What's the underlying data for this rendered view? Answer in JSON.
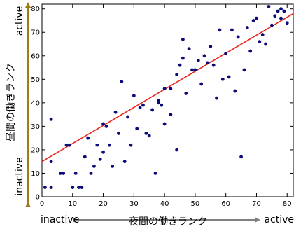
{
  "chart_data": {
    "type": "scatter",
    "title": "",
    "xlabel": "夜間の働きランク",
    "ylabel": "昼間の働きランク",
    "x_low_label": "inactive",
    "x_high_label": "active",
    "y_low_label": "inactive",
    "y_high_label": "active",
    "xlim": [
      0,
      82
    ],
    "ylim": [
      0,
      82
    ],
    "xticks": [
      0,
      10,
      20,
      30,
      40,
      50,
      60,
      70,
      80
    ],
    "yticks": [
      0,
      10,
      20,
      30,
      40,
      50,
      60,
      70,
      80
    ],
    "grid": false,
    "colors": {
      "points": "#0a0a7a",
      "fit_line": "#e8251c",
      "x_arrow": "#808080",
      "y_arrow": "#a07c18"
    },
    "points": [
      [
        1,
        4
      ],
      [
        3,
        4
      ],
      [
        3,
        15
      ],
      [
        3,
        33
      ],
      [
        6,
        10
      ],
      [
        7,
        10
      ],
      [
        8,
        22
      ],
      [
        9,
        22
      ],
      [
        10,
        4
      ],
      [
        11,
        10
      ],
      [
        12,
        4
      ],
      [
        13,
        4
      ],
      [
        14,
        17
      ],
      [
        15,
        25
      ],
      [
        16,
        10
      ],
      [
        17,
        13
      ],
      [
        18,
        22
      ],
      [
        19,
        16
      ],
      [
        20,
        31
      ],
      [
        20,
        19
      ],
      [
        21,
        30
      ],
      [
        22,
        22
      ],
      [
        23,
        13
      ],
      [
        24,
        36
      ],
      [
        25,
        27
      ],
      [
        26,
        49
      ],
      [
        27,
        15
      ],
      [
        28,
        34
      ],
      [
        29,
        22
      ],
      [
        30,
        43
      ],
      [
        31,
        29
      ],
      [
        32,
        38
      ],
      [
        33,
        39
      ],
      [
        34,
        27
      ],
      [
        35,
        26
      ],
      [
        36,
        37
      ],
      [
        37,
        10
      ],
      [
        38,
        40
      ],
      [
        38,
        41
      ],
      [
        39,
        39
      ],
      [
        40,
        31
      ],
      [
        40,
        46
      ],
      [
        42,
        35
      ],
      [
        42,
        46
      ],
      [
        44,
        52
      ],
      [
        44,
        20
      ],
      [
        45,
        56
      ],
      [
        46,
        59
      ],
      [
        46,
        67
      ],
      [
        47,
        44
      ],
      [
        48,
        63
      ],
      [
        49,
        54
      ],
      [
        50,
        54
      ],
      [
        51,
        58
      ],
      [
        52,
        48
      ],
      [
        53,
        60
      ],
      [
        54,
        57
      ],
      [
        55,
        64
      ],
      [
        56,
        56
      ],
      [
        57,
        42
      ],
      [
        58,
        71
      ],
      [
        59,
        50
      ],
      [
        60,
        61
      ],
      [
        61,
        51
      ],
      [
        62,
        71
      ],
      [
        63,
        45
      ],
      [
        64,
        68
      ],
      [
        65,
        17
      ],
      [
        66,
        54
      ],
      [
        67,
        72
      ],
      [
        68,
        62
      ],
      [
        69,
        75
      ],
      [
        70,
        76
      ],
      [
        71,
        66
      ],
      [
        72,
        69
      ],
      [
        73,
        65
      ],
      [
        74,
        81
      ],
      [
        75,
        73
      ],
      [
        76,
        77
      ],
      [
        77,
        79
      ],
      [
        78,
        80
      ],
      [
        78,
        76
      ],
      [
        79,
        79
      ],
      [
        80,
        74
      ],
      [
        80,
        83
      ]
    ],
    "fit_line": {
      "x": [
        0,
        82
      ],
      "y": [
        15,
        78
      ]
    }
  }
}
